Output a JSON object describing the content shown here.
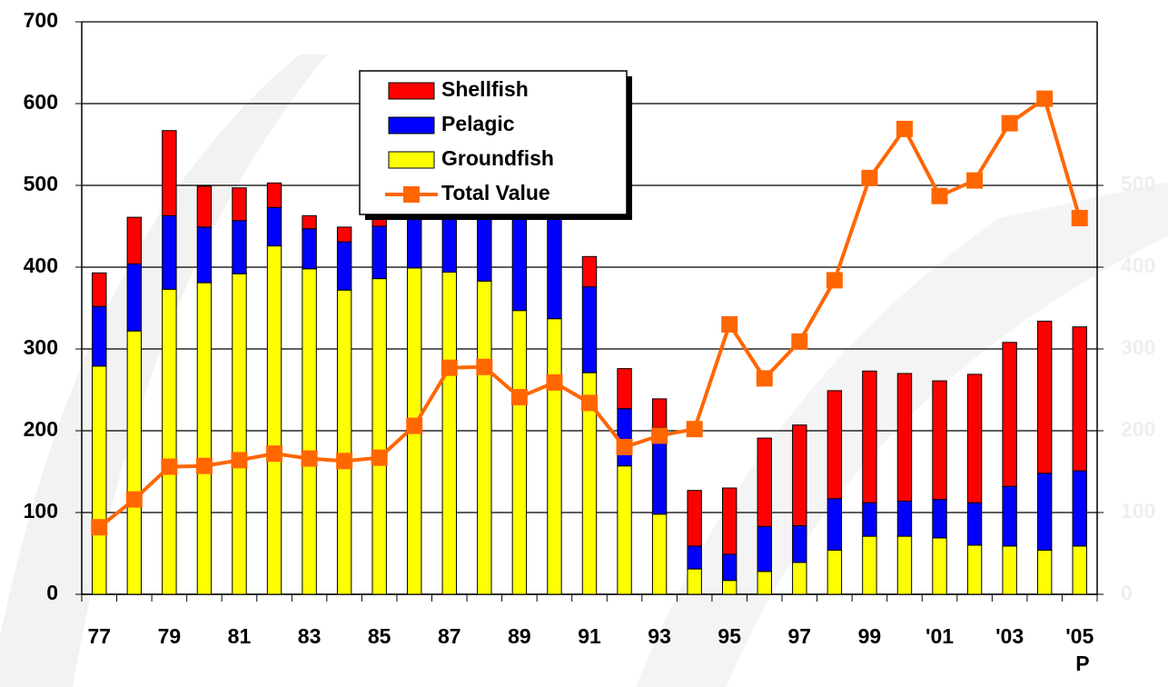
{
  "chart_data": {
    "type": "bar",
    "categories": [
      "77",
      null,
      "79",
      null,
      "81",
      null,
      "83",
      null,
      "85",
      null,
      "87",
      null,
      "89",
      null,
      "91",
      null,
      "93",
      null,
      "95",
      null,
      "97",
      null,
      "99",
      null,
      "'01",
      null,
      "'03",
      null,
      "'05 P"
    ],
    "series": [
      {
        "name": "Groundfish",
        "color": "#ffff00",
        "values": [
          279,
          322,
          373,
          381,
          392,
          426,
          398,
          372,
          386,
          399,
          394,
          383,
          347,
          337,
          271,
          157,
          98,
          31,
          17,
          28,
          39,
          54,
          71,
          71,
          69,
          60,
          59,
          54,
          59
        ]
      },
      {
        "name": "Pelagic",
        "color": "#0000ff",
        "values": [
          73,
          82,
          90,
          68,
          65,
          47,
          49,
          59,
          64,
          91,
          106,
          107,
          133,
          133,
          105,
          70,
          106,
          28,
          32,
          55,
          45,
          63,
          41,
          43,
          47,
          52,
          73,
          94,
          92
        ]
      },
      {
        "name": "Shellfish",
        "color": "#ff0000",
        "values": [
          41,
          57,
          104,
          50,
          40,
          30,
          16,
          18,
          20,
          50,
          60,
          50,
          40,
          40,
          37,
          49,
          35,
          68,
          81,
          108,
          123,
          132,
          161,
          156,
          145,
          157,
          176,
          186,
          176
        ]
      },
      {
        "name": "Total Value",
        "color": "#ff6600",
        "type": "line",
        "axis": "y2",
        "values": [
          82,
          116,
          156,
          157,
          164,
          172,
          166,
          163,
          167,
          206,
          277,
          278,
          241,
          259,
          234,
          180,
          194,
          202,
          330,
          264,
          309,
          384,
          509,
          569,
          487,
          506,
          576,
          606,
          460
        ]
      }
    ],
    "stacked": true,
    "ylim": [
      0,
      700
    ],
    "yticks": [
      0,
      100,
      200,
      300,
      400,
      500,
      600,
      700
    ],
    "y2lim": [
      0,
      700
    ],
    "y2ticks": [
      0,
      100,
      200,
      300,
      400,
      500
    ],
    "grid": true,
    "legend": "top"
  }
}
